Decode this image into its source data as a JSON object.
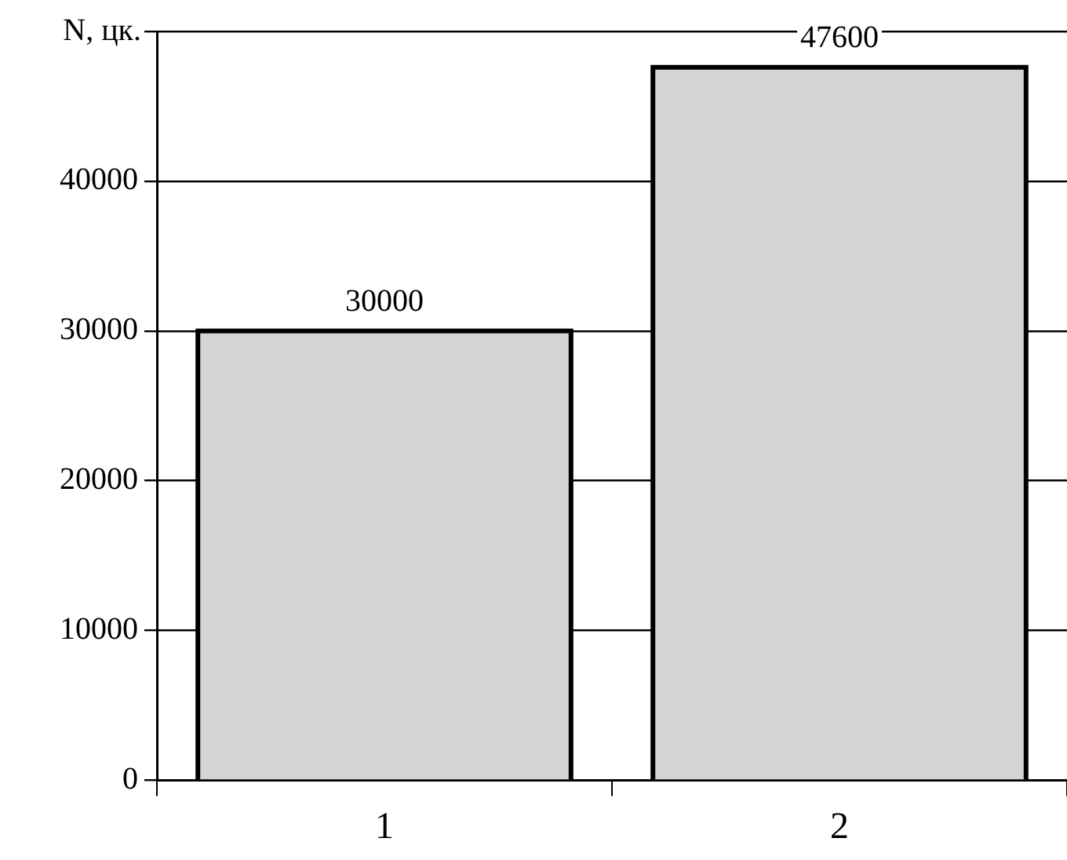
{
  "chart_data": {
    "type": "bar",
    "ylabel": "N, цк.",
    "categories": [
      "1",
      "2"
    ],
    "values": [
      30000,
      47600
    ],
    "color": "#d4d4d4",
    "ylim": [
      0,
      50000
    ],
    "yticks": [
      0,
      10000,
      20000,
      30000,
      40000,
      {
        "value": 50000,
        "label": null
      }
    ],
    "grid": "y",
    "data_labels": true
  }
}
